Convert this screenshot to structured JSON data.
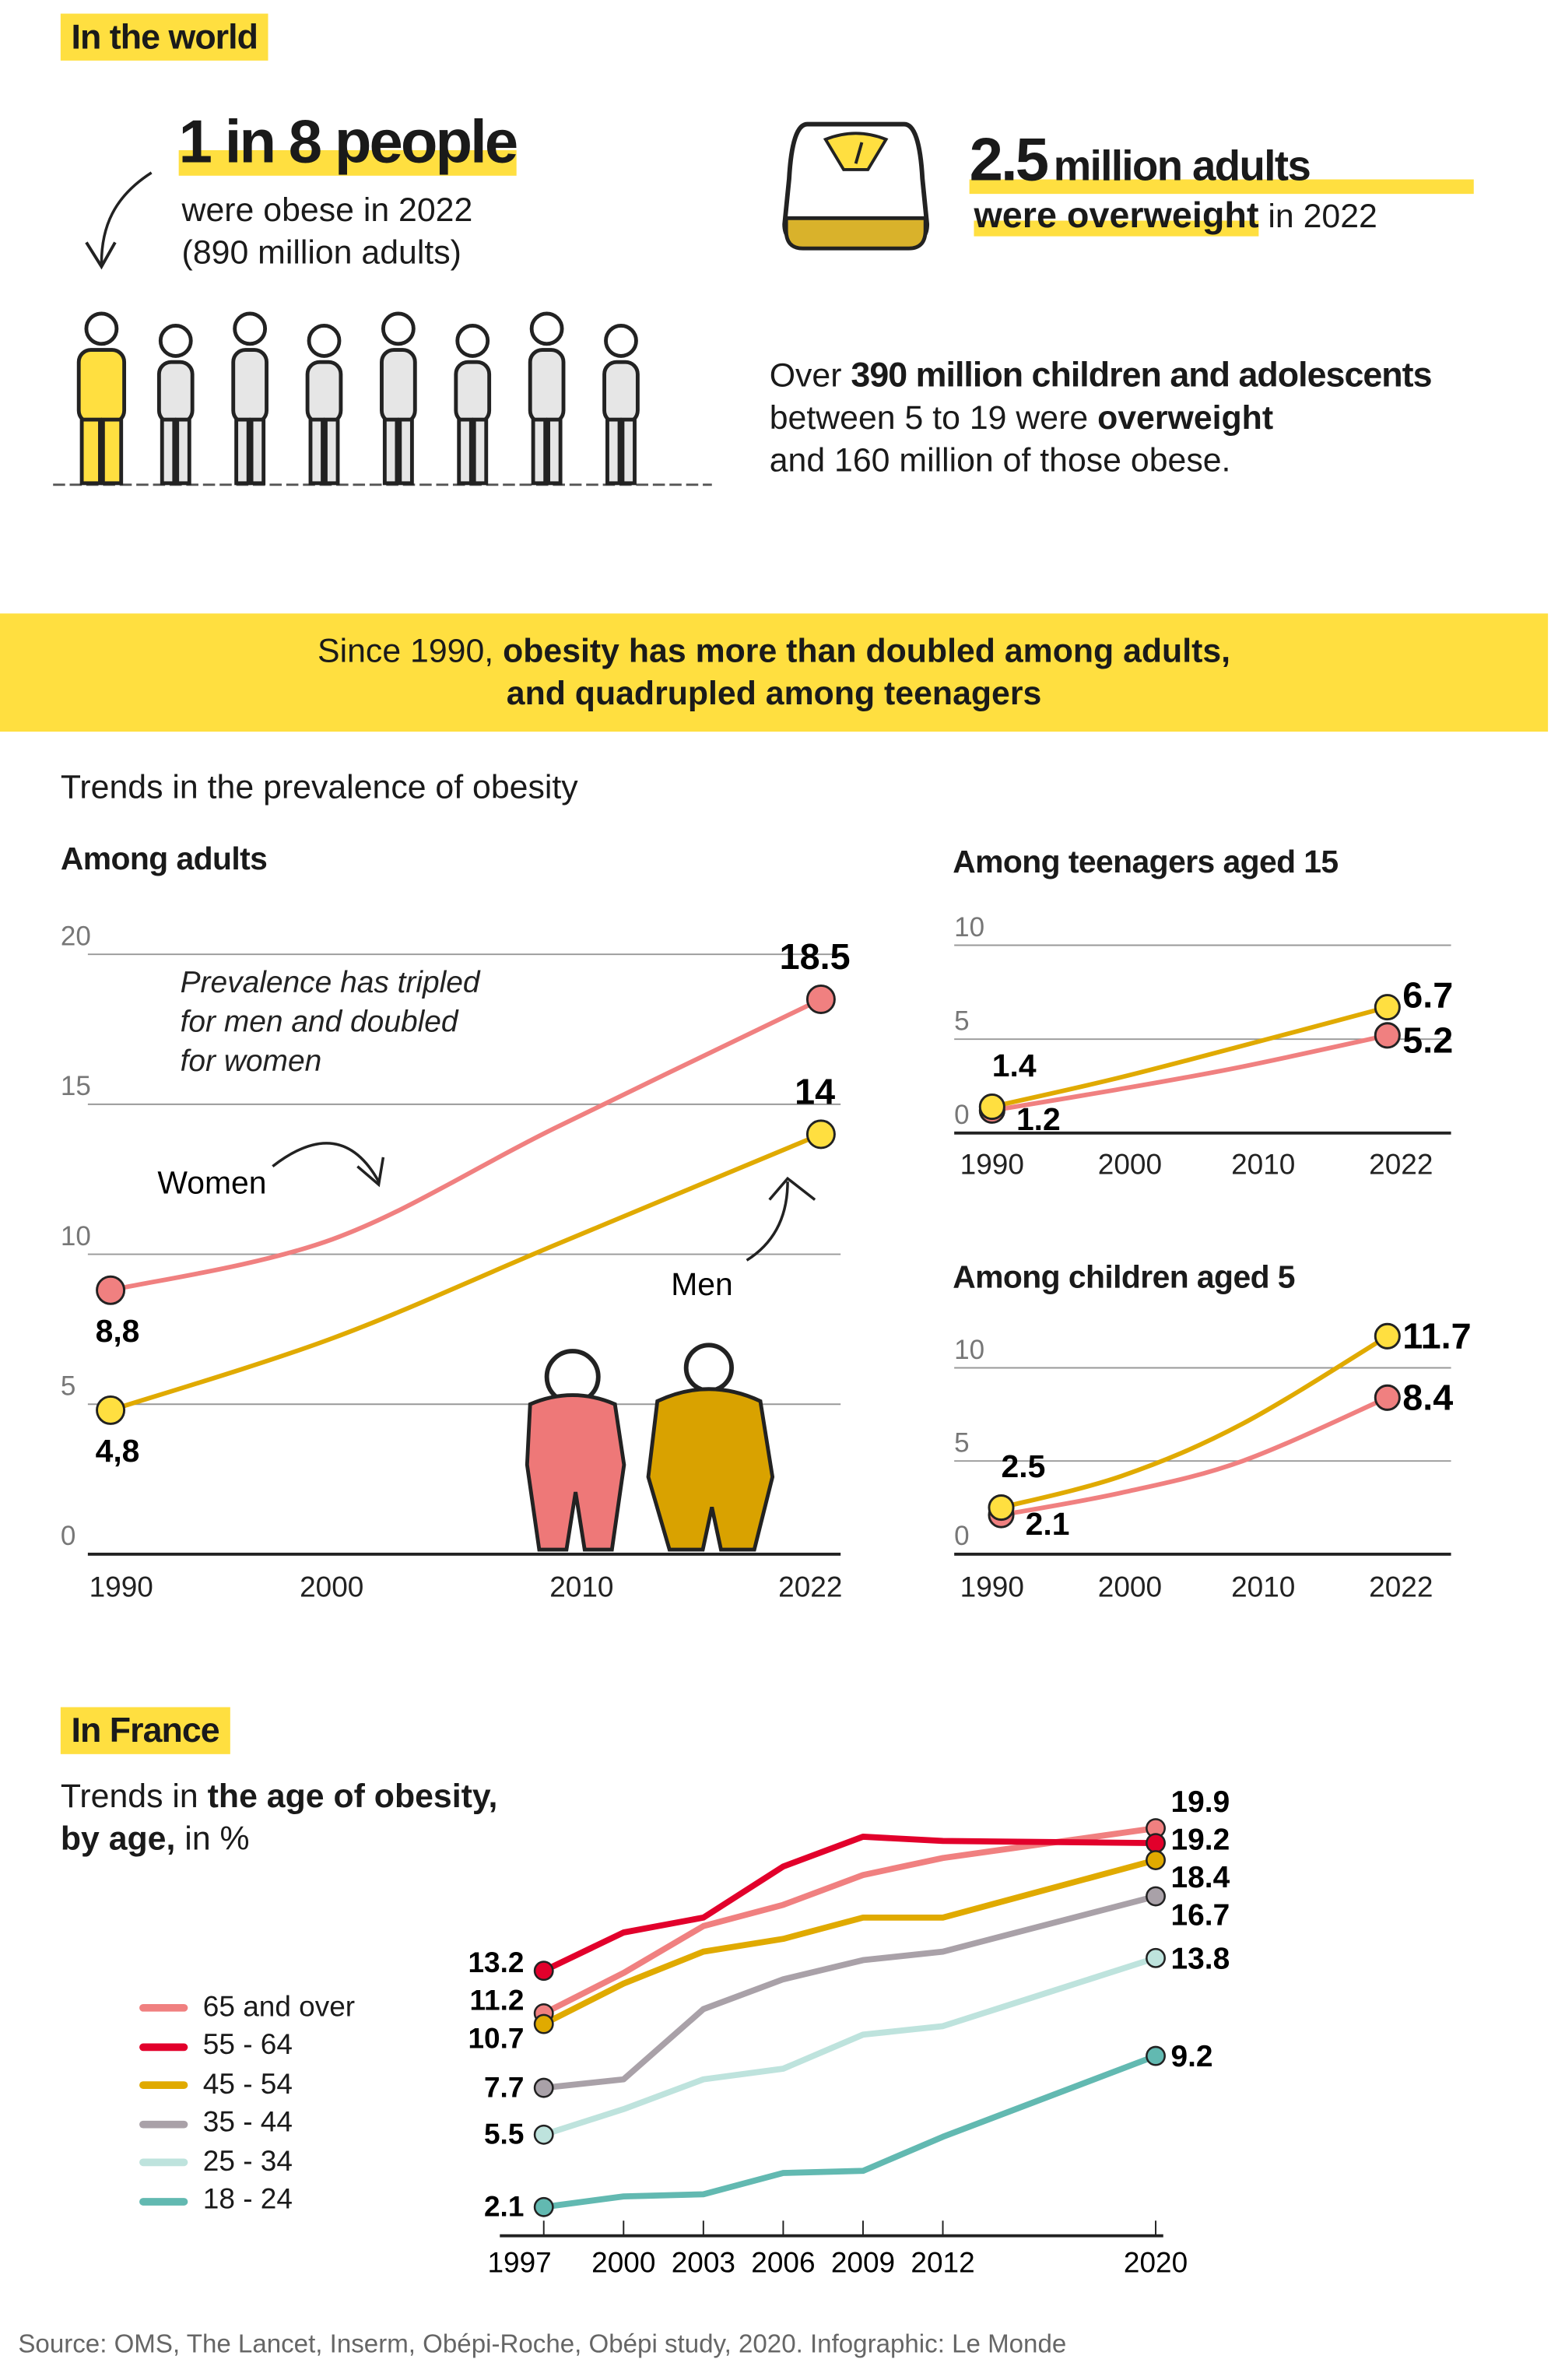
{
  "world": {
    "tag": "In the world",
    "stat1": {
      "headline": "1 in 8 people",
      "line1": "were obese in 2022",
      "line2": "(890 million adults)"
    },
    "stat2": {
      "headline_num": "2.5",
      "headline_rest": "million adults",
      "line_bold": "were overweight",
      "line_rest": " in 2022"
    },
    "stat3": {
      "p1": "Over ",
      "p1_bold": "390 million children and adolescents",
      "p2": "between 5 to 19 were ",
      "p2_bold": "overweight",
      "p3": "and 160 million of those obese."
    }
  },
  "banner": {
    "plain": "Since 1990, ",
    "bold1": "obesity has more than doubled among adults,",
    "bold2": "and quadrupled among teenagers"
  },
  "trends_title": "Trends in the prevalence of obesity",
  "france": {
    "tag": "In France",
    "title_plain1": "Trends in ",
    "title_bold1": "the  age of obesity,",
    "title_bold2": "by age,",
    "title_plain2": " in %"
  },
  "source": "Source: OMS, The Lancet, Inserm, Obépi-Roche, Obépi study, 2020. Infographic: Le Monde",
  "colors": {
    "yellow": "#FFDF40",
    "women": "#F08080",
    "men": "#E0AA00",
    "men_dot": "#FFDF40"
  },
  "chart_data": [
    {
      "id": "adults",
      "type": "line",
      "title": "Among adults",
      "x": [
        1990,
        2000,
        2010,
        2022
      ],
      "xticks": [
        "1990",
        "2000",
        "2010",
        "2022"
      ],
      "ylim": [
        0,
        20
      ],
      "yticks": [
        "0",
        "5",
        "10",
        "15",
        "20"
      ],
      "grid": true,
      "annotation": "Prevalence has tripled for men and doubled for women",
      "annotation_lines": [
        "Prevalence has tripled",
        "for men and doubled",
        "for women"
      ],
      "series": [
        {
          "name": "Women",
          "color": "#F08080",
          "dot": "#F08080",
          "values": [
            8.8,
            10.5,
            14.2,
            18.5
          ],
          "start_label": "8,8",
          "end_label": "18.5"
        },
        {
          "name": "Men",
          "color": "#E0AA00",
          "dot": "#FFDF40",
          "values": [
            4.8,
            7.2,
            10.3,
            14
          ],
          "start_label": "4,8",
          "end_label": "14"
        }
      ]
    },
    {
      "id": "teens",
      "type": "line",
      "title": "Among teenagers aged 15",
      "x": [
        1990,
        2000,
        2010,
        2022
      ],
      "xticks": [
        "1990",
        "2000",
        "2010",
        "2022"
      ],
      "ylim": [
        0,
        10
      ],
      "yticks": [
        "0",
        "5",
        "10"
      ],
      "grid": true,
      "series": [
        {
          "color": "#F08080",
          "dot": "#F08080",
          "values": [
            1.2,
            2.3,
            3.5,
            5.2
          ],
          "start_label": "1.2",
          "end_label": "5.2"
        },
        {
          "color": "#E0AA00",
          "dot": "#FFDF40",
          "values": [
            1.4,
            2.9,
            4.6,
            6.7
          ],
          "start_label": "1.4",
          "end_label": "6.7"
        }
      ]
    },
    {
      "id": "children",
      "type": "line",
      "title": "Among children aged 5",
      "x": [
        1990,
        2000,
        2010,
        2022
      ],
      "xticks": [
        "1990",
        "2000",
        "2010",
        "2022"
      ],
      "ylim": [
        0,
        10
      ],
      "yticks": [
        "0",
        "5",
        "10"
      ],
      "grid": true,
      "series": [
        {
          "color": "#F08080",
          "dot": "#F08080",
          "values": [
            2.1,
            3.3,
            5.0,
            8.4
          ],
          "start_label": "2.1",
          "end_label": "8.4"
        },
        {
          "color": "#E0AA00",
          "dot": "#FFDF40",
          "values": [
            2.5,
            4.2,
            7.0,
            11.7
          ],
          "start_label": "2.5",
          "end_label": "11.7"
        }
      ]
    },
    {
      "id": "france",
      "type": "line",
      "title": "Trends in the age of obesity, by age, in %",
      "x": [
        1997,
        2000,
        2003,
        2006,
        2009,
        2012,
        2020
      ],
      "xticks": [
        "1997",
        "2000",
        "2003",
        "2006",
        "2009",
        "2012",
        "2020"
      ],
      "legend": "left",
      "series": [
        {
          "name": "65 and over",
          "color": "#F08080",
          "values": [
            11.2,
            13.1,
            15.3,
            16.3,
            17.7,
            18.5,
            19.9
          ],
          "start_label": "11.2",
          "end_label": "19.9"
        },
        {
          "name": "55 - 64",
          "color": "#E2002B",
          "values": [
            13.2,
            15.0,
            15.7,
            18.1,
            19.5,
            19.3,
            19.2
          ],
          "start_label": "13.2",
          "end_label": "19.2"
        },
        {
          "name": "45 - 54",
          "color": "#E0AA00",
          "values": [
            10.7,
            12.6,
            14.1,
            14.7,
            15.7,
            15.7,
            18.4
          ],
          "start_label": "10.7",
          "end_label": "18.4"
        },
        {
          "name": "35 - 44",
          "color": "#A9A1A8",
          "values": [
            7.7,
            8.1,
            11.4,
            12.8,
            13.7,
            14.1,
            16.7
          ],
          "start_label": "7.7",
          "end_label": "16.7"
        },
        {
          "name": "25 - 34",
          "color": "#BEE3DD",
          "values": [
            5.5,
            6.7,
            8.1,
            8.6,
            10.2,
            10.6,
            13.8
          ],
          "start_label": "5.5",
          "end_label": "13.8"
        },
        {
          "name": "18 - 24",
          "color": "#62B9B1",
          "values": [
            2.1,
            2.6,
            2.7,
            3.7,
            3.8,
            5.4,
            9.2
          ],
          "start_label": "2.1",
          "end_label": "9.2"
        }
      ]
    }
  ]
}
